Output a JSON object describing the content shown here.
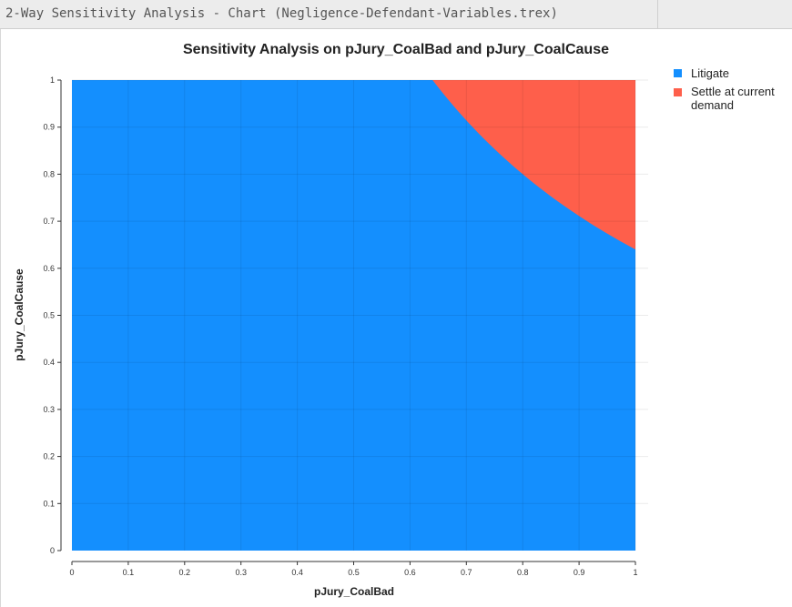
{
  "window": {
    "title": "2-Way Sensitivity Analysis - Chart (Negligence-Defendant-Variables.trex)"
  },
  "chart_data": {
    "type": "area",
    "title": "Sensitivity Analysis on pJury_CoalBad and pJury_CoalCause",
    "xlabel": "pJury_CoalBad",
    "ylabel": "pJury_CoalCause",
    "xlim": [
      0,
      1
    ],
    "ylim": [
      0,
      1
    ],
    "x_ticks": [
      "0",
      "0.1",
      "0.2",
      "0.3",
      "0.4",
      "0.5",
      "0.6",
      "0.7",
      "0.8",
      "0.9",
      "1"
    ],
    "y_ticks": [
      "0",
      "0.1",
      "0.2",
      "0.3",
      "0.4",
      "0.5",
      "0.6",
      "0.7",
      "0.8",
      "0.9",
      "1"
    ],
    "grid": true,
    "legend_position": "top-right",
    "series": [
      {
        "name": "Litigate",
        "color": "#148ffe"
      },
      {
        "name": "Settle at current demand",
        "color": "#fe5f4b"
      }
    ],
    "boundary": {
      "description_of_values": "pJury_CoalBad x pJury_CoalCause = threshold",
      "threshold": 0.64,
      "x": [
        0.64,
        0.68,
        0.72,
        0.76,
        0.8,
        0.84,
        0.88,
        0.92,
        0.96,
        1.0
      ],
      "y": [
        1.0,
        0.941,
        0.889,
        0.842,
        0.8,
        0.762,
        0.727,
        0.696,
        0.667,
        0.64
      ]
    }
  },
  "legend": {
    "items": [
      {
        "label_line1": "Litigate",
        "label_line2": "",
        "color": "#148ffe"
      },
      {
        "label_line1": "Settle at current",
        "label_line2": "demand",
        "color": "#fe5f4b"
      }
    ]
  }
}
